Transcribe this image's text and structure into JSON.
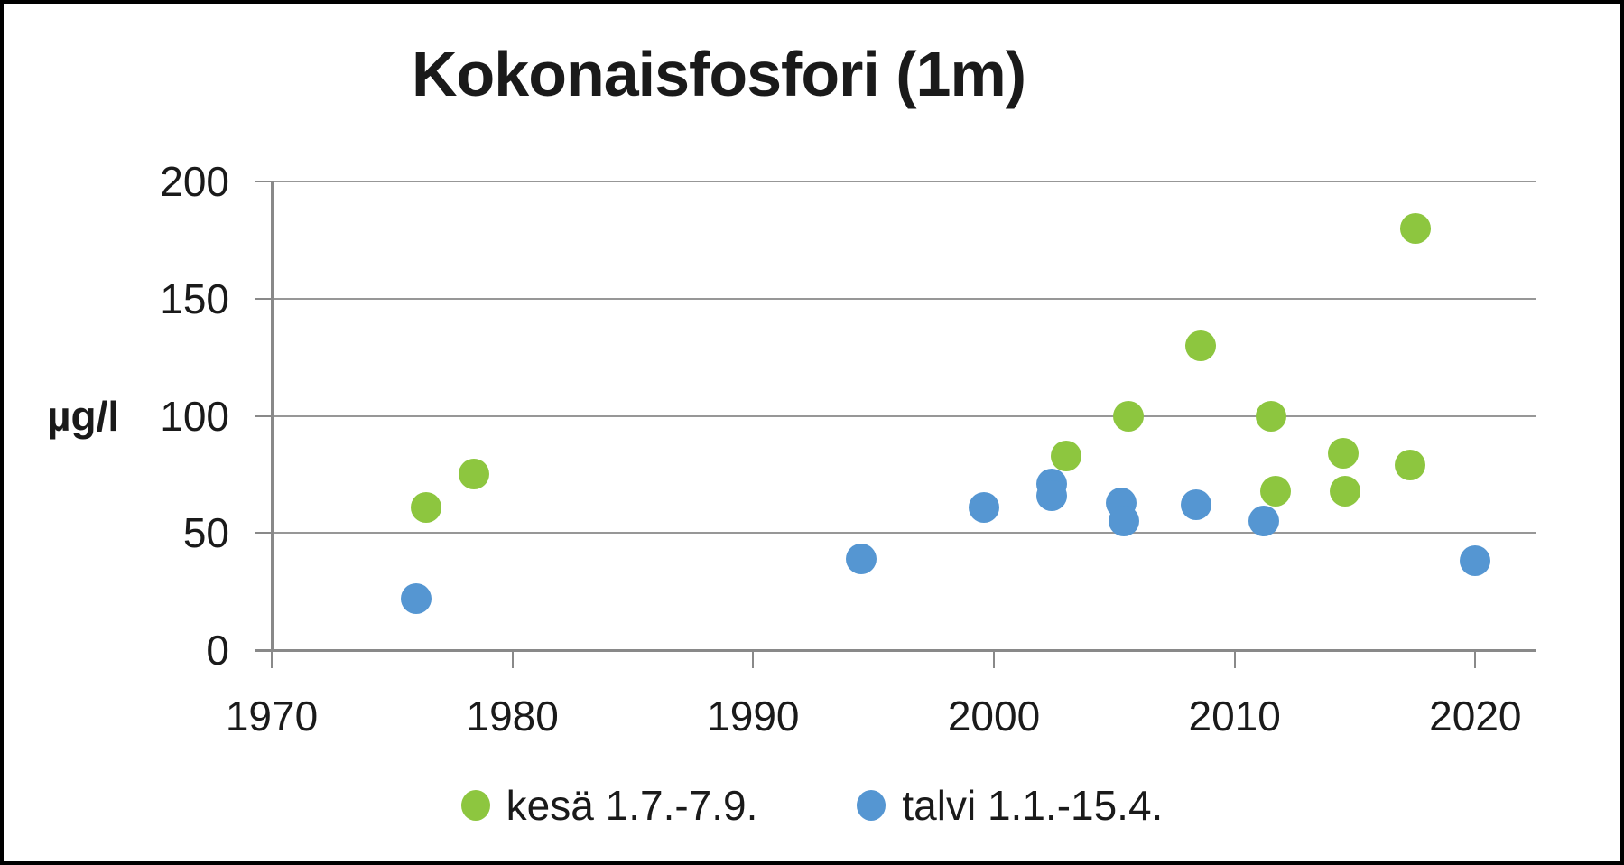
{
  "title": "Kokonaisfosfori (1m)",
  "y_axis": {
    "label": "µg/l",
    "tick_labels": [
      "0",
      "50",
      "100",
      "150",
      "200"
    ],
    "tick_values": [
      0,
      50,
      100,
      150,
      200
    ]
  },
  "x_axis": {
    "tick_labels": [
      "1970",
      "1980",
      "1990",
      "2000",
      "2010",
      "2020"
    ],
    "tick_values": [
      1970,
      1980,
      1990,
      2000,
      2010,
      2020
    ]
  },
  "legend": {
    "items": [
      {
        "label": "kesä 1.7.-7.9.",
        "color": "#8DC63F"
      },
      {
        "label": "talvi 1.1.-15.4.",
        "color": "#5596D2"
      }
    ]
  },
  "colors": {
    "summer_green": "#8DC63F",
    "winter_blue": "#5596D2",
    "gridline_gray": "#979797",
    "axis_gray": "#898989",
    "text_black": "#1a1a1a",
    "border_black": "#000000"
  },
  "chart_data": {
    "type": "scatter",
    "title": "Kokonaisfosfori (1m)",
    "xlabel": "",
    "ylabel": "µg/l",
    "xlim": [
      1970,
      2022.5
    ],
    "ylim": [
      0,
      200
    ],
    "x_major_unit": 10,
    "y_major_unit": 50,
    "grid": true,
    "legend_position": "bottom",
    "series": [
      {
        "name": "kesä 1.7.-7.9.",
        "color": "#8DC63F",
        "points": [
          [
            1976.4,
            61
          ],
          [
            1978.4,
            75
          ],
          [
            2003.0,
            83
          ],
          [
            2005.6,
            100
          ],
          [
            2008.6,
            130
          ],
          [
            2011.5,
            100
          ],
          [
            2011.7,
            68
          ],
          [
            2014.5,
            84
          ],
          [
            2014.6,
            68
          ],
          [
            2017.3,
            79
          ],
          [
            2017.5,
            180
          ]
        ]
      },
      {
        "name": "talvi 1.1.-15.4.",
        "color": "#5596D2",
        "points": [
          [
            1976.0,
            22
          ],
          [
            1994.5,
            39
          ],
          [
            1999.6,
            61
          ],
          [
            2002.4,
            71
          ],
          [
            2002.4,
            66
          ],
          [
            2005.3,
            63
          ],
          [
            2005.4,
            55
          ],
          [
            2008.4,
            62
          ],
          [
            2011.2,
            55
          ],
          [
            2020.0,
            38
          ]
        ]
      }
    ]
  }
}
